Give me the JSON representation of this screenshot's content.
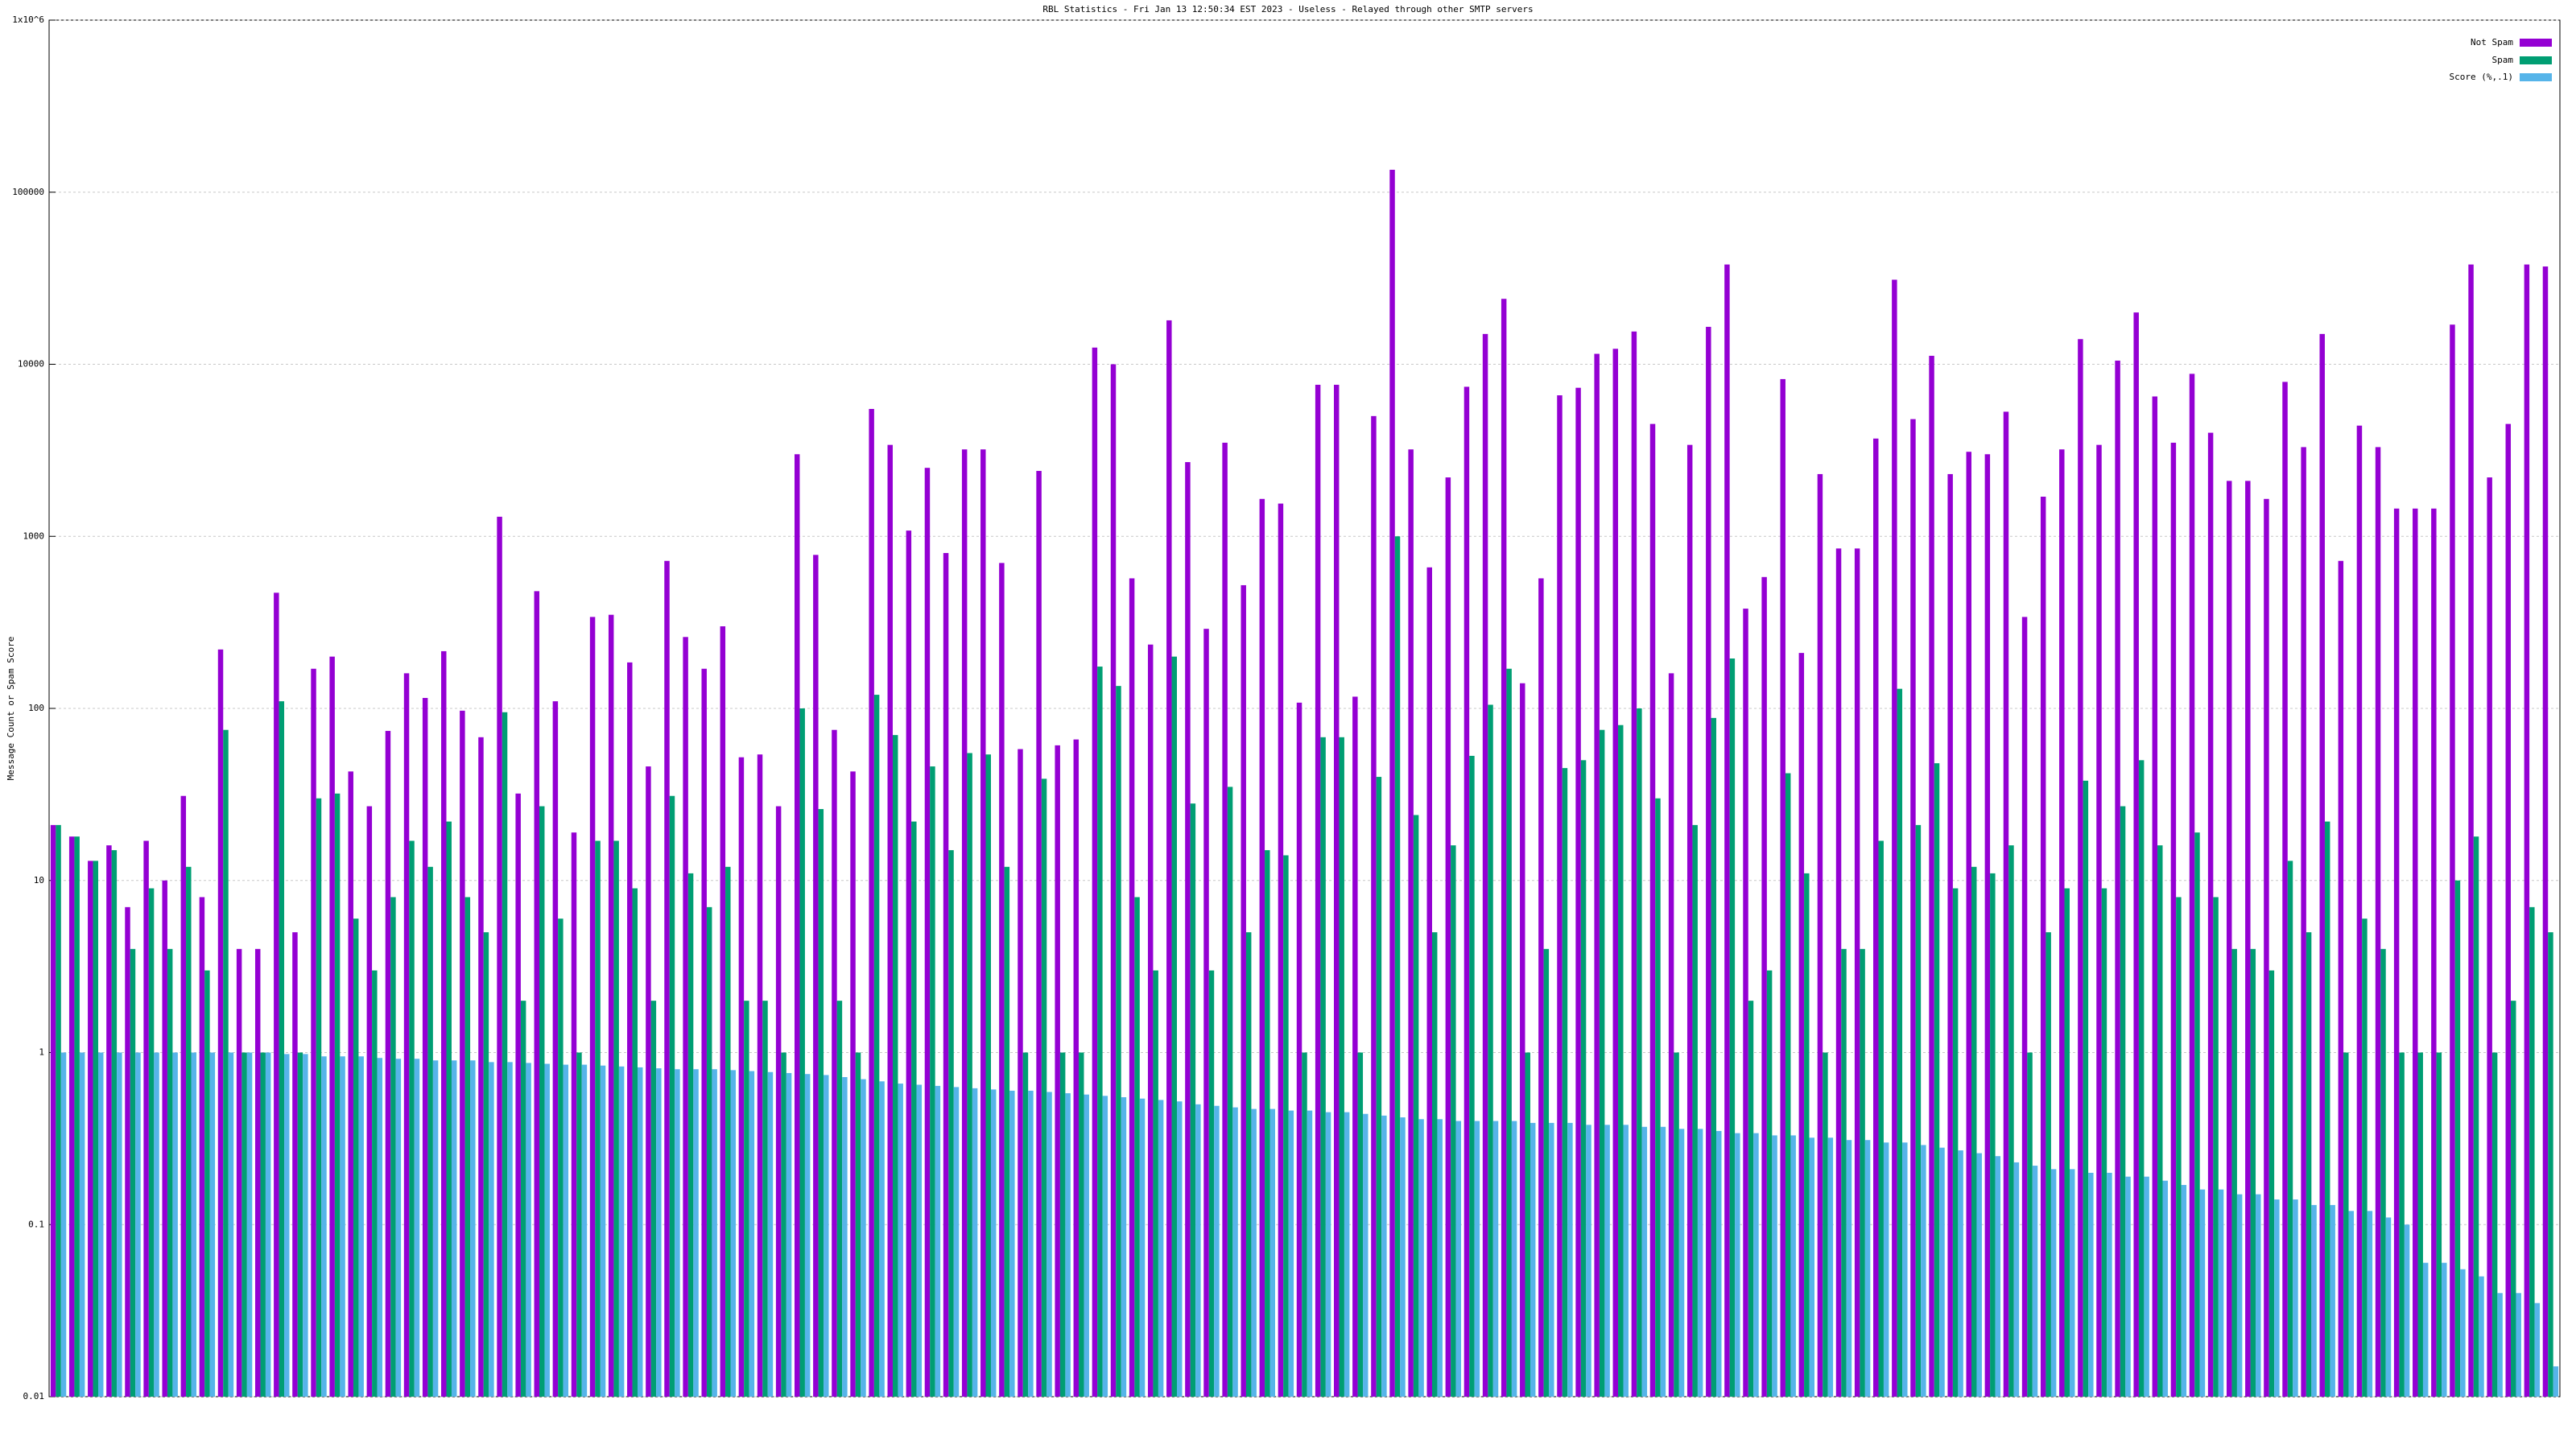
{
  "chart_data": {
    "type": "bar",
    "title": "RBL Statistics - Fri Jan 13 12:50:34 EST 2023 - Useless - Relayed through other SMTP servers",
    "y_label": "Message Count or Spam Score",
    "log_scale_y": true,
    "grid": true,
    "legend": "top right",
    "ylim": [
      0.01,
      1000000
    ],
    "yticks": [
      0.01,
      0.1,
      1,
      10,
      100,
      1000,
      10000,
      100000,
      {
        "value": 1000000,
        "label": "1x10^6"
      }
    ],
    "categories": [
      null,
      null,
      null,
      null,
      null,
      null,
      null,
      null,
      null,
      null,
      null,
      null,
      null,
      null,
      null,
      null,
      null,
      null,
      null,
      null,
      null,
      null,
      null,
      null,
      null,
      null,
      null,
      null,
      null,
      null,
      null,
      null,
      null,
      null,
      null,
      null,
      null,
      null,
      null,
      null,
      null,
      null,
      null,
      null,
      null,
      null,
      null,
      null,
      null,
      null,
      null,
      null,
      null,
      null,
      null,
      null,
      null,
      null,
      null,
      null,
      null,
      null,
      null,
      null,
      null,
      null,
      null,
      null,
      null,
      null,
      null,
      null,
      null,
      null,
      null,
      null,
      null,
      null,
      null,
      null,
      null,
      null,
      null,
      null,
      null,
      null,
      null,
      null,
      null,
      null,
      null,
      null,
      null,
      null,
      null,
      null,
      null,
      null,
      null,
      null,
      null,
      null,
      null,
      null,
      null,
      null,
      null,
      null,
      null,
      null,
      null,
      null,
      null,
      null,
      null,
      null,
      null,
      null,
      null,
      null,
      null,
      null,
      null,
      null,
      null,
      null,
      null,
      null,
      null,
      null,
      null,
      null,
      null,
      null,
      null
    ],
    "series": [
      {
        "name": "Not Spam",
        "color": "#9400d3",
        "values": [
          21,
          18,
          13,
          16,
          7,
          17,
          10,
          31,
          8,
          220,
          4,
          4,
          470,
          5,
          170,
          200,
          43,
          27,
          74,
          160,
          115,
          215,
          97,
          68,
          1300,
          32,
          480,
          110,
          19,
          340,
          350,
          185,
          46,
          720,
          260,
          170,
          300,
          52,
          54,
          27,
          3000,
          780,
          75,
          43,
          5500,
          3400,
          1080,
          2500,
          800,
          3200,
          3200,
          700,
          58,
          2400,
          61,
          66,
          12500,
          10000,
          570,
          235,
          18000,
          2700,
          290,
          3500,
          520,
          1650,
          1550,
          108,
          7600,
          7600,
          117,
          5000,
          135000,
          3200,
          660,
          2200,
          7400,
          15000,
          24000,
          140,
          570,
          6600,
          7300,
          11500,
          12300,
          15500,
          4500,
          160,
          3400,
          16500,
          38000,
          380,
          580,
          8200,
          210,
          2300,
          850,
          850,
          3700,
          31000,
          4800,
          11200,
          2300,
          3100,
          3000,
          5300,
          340,
          1700,
          3200,
          14000,
          3400,
          10500,
          20000,
          6500,
          3500,
          8800,
          4000,
          2100,
          2100,
          1650,
          7900,
          3300,
          15000,
          720,
          4400,
          3300,
          1450,
          1450,
          1450,
          17000,
          38000,
          2200,
          4500,
          38000,
          37000
        ]
      },
      {
        "name": "Spam",
        "color": "#009e73",
        "values": [
          21,
          18,
          13,
          15,
          4,
          9,
          4,
          12,
          3,
          75,
          1,
          1,
          110,
          1,
          30,
          32,
          6,
          3,
          8,
          17,
          12,
          22,
          8,
          5,
          95,
          2,
          27,
          6,
          1,
          17,
          17,
          9,
          2,
          31,
          11,
          7,
          12,
          2,
          2,
          1,
          100,
          26,
          2,
          1,
          120,
          70,
          22,
          46,
          15,
          55,
          54,
          12,
          1,
          39,
          1,
          1,
          175,
          135,
          8,
          3,
          200,
          28,
          3,
          35,
          5,
          15,
          14,
          1,
          68,
          68,
          1,
          40,
          1000,
          24,
          5,
          16,
          53,
          105,
          170,
          1,
          4,
          45,
          50,
          75,
          80,
          100,
          30,
          1,
          21,
          88,
          195,
          2,
          3,
          42,
          11,
          1,
          4,
          4,
          17,
          130,
          21,
          48,
          9,
          12,
          11,
          16,
          1,
          5,
          9,
          38,
          9,
          27,
          50,
          16,
          8,
          19,
          8,
          4,
          4,
          3,
          13,
          5,
          22,
          1,
          6,
          4,
          1,
          1,
          1,
          10,
          18,
          1,
          2,
          7,
          5
        ]
      },
      {
        "name": "Score (%,.1)",
        "color": "#56b4e9",
        "values": [
          1,
          1,
          1,
          1,
          1,
          1,
          1,
          1,
          1,
          1,
          1,
          1,
          0.98,
          0.98,
          0.95,
          0.95,
          0.95,
          0.93,
          0.92,
          0.92,
          0.9,
          0.9,
          0.9,
          0.88,
          0.88,
          0.87,
          0.86,
          0.85,
          0.85,
          0.84,
          0.83,
          0.82,
          0.81,
          0.8,
          0.8,
          0.8,
          0.79,
          0.78,
          0.77,
          0.76,
          0.75,
          0.74,
          0.72,
          0.7,
          0.68,
          0.66,
          0.65,
          0.64,
          0.63,
          0.62,
          0.61,
          0.6,
          0.6,
          0.59,
          0.58,
          0.57,
          0.56,
          0.55,
          0.54,
          0.53,
          0.52,
          0.5,
          0.49,
          0.48,
          0.47,
          0.47,
          0.46,
          0.46,
          0.45,
          0.45,
          0.44,
          0.43,
          0.42,
          0.41,
          0.41,
          0.4,
          0.4,
          0.4,
          0.4,
          0.39,
          0.39,
          0.39,
          0.38,
          0.38,
          0.38,
          0.37,
          0.37,
          0.36,
          0.36,
          0.35,
          0.34,
          0.34,
          0.33,
          0.33,
          0.32,
          0.32,
          0.31,
          0.31,
          0.3,
          0.3,
          0.29,
          0.28,
          0.27,
          0.26,
          0.25,
          0.23,
          0.22,
          0.21,
          0.21,
          0.2,
          0.2,
          0.19,
          0.19,
          0.18,
          0.17,
          0.16,
          0.16,
          0.15,
          0.15,
          0.14,
          0.14,
          0.13,
          0.13,
          0.12,
          0.12,
          0.11,
          0.1,
          0.06,
          0.06,
          0.055,
          0.05,
          0.04,
          0.04,
          0.035,
          0.015
        ]
      }
    ]
  }
}
